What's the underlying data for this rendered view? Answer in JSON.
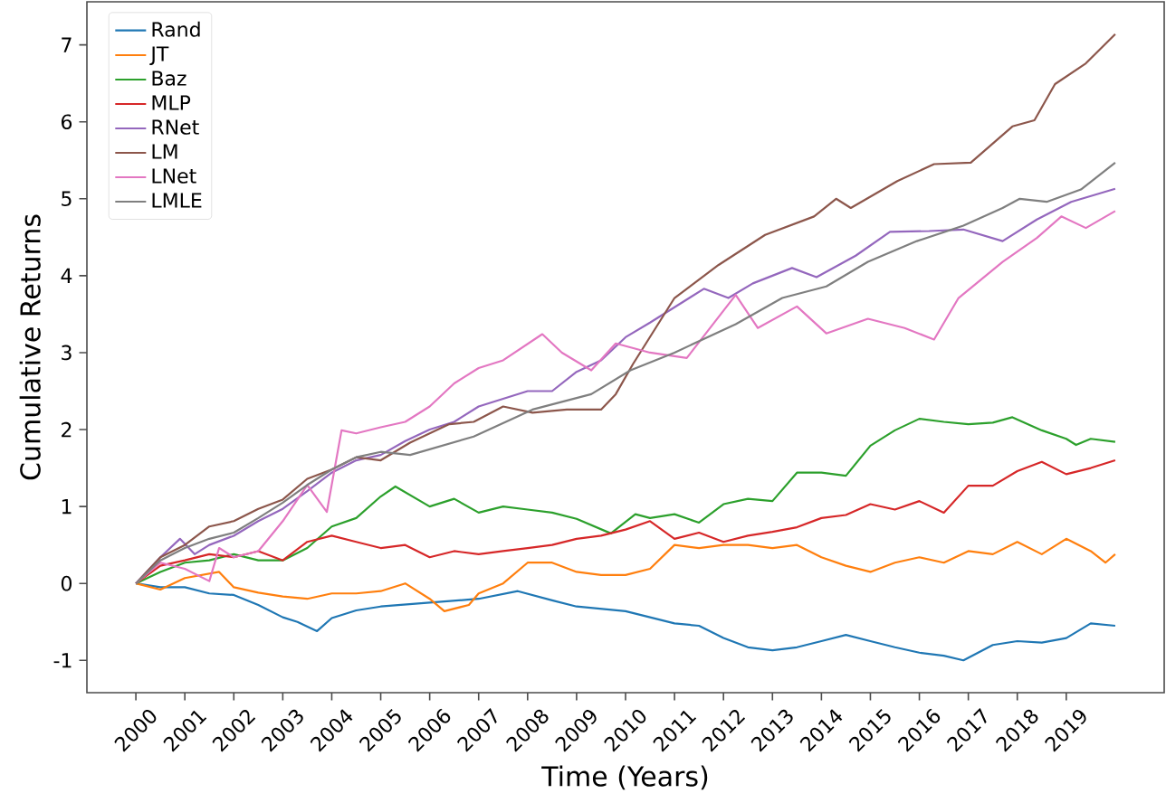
{
  "chart_data": {
    "type": "line",
    "xlabel": "Time (Years)",
    "ylabel": "Cumulative Returns",
    "xlim": [
      1999,
      2021
    ],
    "ylim": [
      -1.42,
      7.56
    ],
    "xticks": [
      2000,
      2001,
      2002,
      2003,
      2004,
      2005,
      2006,
      2007,
      2008,
      2009,
      2010,
      2011,
      2012,
      2013,
      2014,
      2015,
      2016,
      2017,
      2018,
      2019
    ],
    "yticks": [
      -1,
      0,
      1,
      2,
      3,
      4,
      5,
      6,
      7
    ],
    "legend": "top left",
    "grid": false,
    "series": [
      {
        "name": "Rand",
        "color": "#1f77b4",
        "x": [
          2000,
          2000.5,
          2001,
          2001.5,
          2002,
          2002.5,
          2003,
          2003.3,
          2003.7,
          2004,
          2004.5,
          2005,
          2006,
          2007,
          2007.8,
          2008.5,
          2009,
          2010,
          2011,
          2011.5,
          2012,
          2012.5,
          2013,
          2013.5,
          2014,
          2014.5,
          2015,
          2015.5,
          2016,
          2016.5,
          2016.9,
          2017.5,
          2018,
          2018.5,
          2019,
          2019.5,
          2020
        ],
        "values": [
          0,
          -0.05,
          -0.05,
          -0.13,
          -0.15,
          -0.28,
          -0.44,
          -0.5,
          -0.62,
          -0.45,
          -0.35,
          -0.3,
          -0.25,
          -0.2,
          -0.1,
          -0.22,
          -0.3,
          -0.36,
          -0.52,
          -0.55,
          -0.71,
          -0.83,
          -0.87,
          -0.83,
          -0.75,
          -0.67,
          -0.75,
          -0.83,
          -0.9,
          -0.94,
          -1.0,
          -0.8,
          -0.75,
          -0.77,
          -0.71,
          -0.52,
          -0.55
        ]
      },
      {
        "name": "JT",
        "color": "#ff7f0e",
        "x": [
          2000,
          2000.5,
          2001,
          2001.7,
          2002,
          2002.5,
          2003,
          2003.5,
          2004,
          2004.5,
          2005,
          2005.5,
          2006,
          2006.3,
          2006.8,
          2007,
          2007.5,
          2008,
          2008.5,
          2009,
          2009.5,
          2010,
          2010.5,
          2011,
          2011.5,
          2012,
          2012.5,
          2013,
          2013.5,
          2014,
          2014.5,
          2015,
          2015.5,
          2016,
          2016.5,
          2017,
          2017.5,
          2018,
          2018.5,
          2019,
          2019.5,
          2019.8,
          2020
        ],
        "values": [
          0,
          -0.08,
          0.07,
          0.15,
          -0.05,
          -0.12,
          -0.17,
          -0.2,
          -0.13,
          -0.13,
          -0.1,
          0,
          -0.2,
          -0.36,
          -0.28,
          -0.13,
          0,
          0.27,
          0.27,
          0.15,
          0.11,
          0.11,
          0.19,
          0.5,
          0.46,
          0.5,
          0.5,
          0.46,
          0.5,
          0.34,
          0.23,
          0.15,
          0.27,
          0.34,
          0.27,
          0.42,
          0.38,
          0.54,
          0.38,
          0.58,
          0.42,
          0.27,
          0.38
        ]
      },
      {
        "name": "Baz",
        "color": "#2ca02c",
        "x": [
          2000,
          2000.5,
          2001,
          2001.5,
          2002,
          2002.5,
          2003,
          2003.5,
          2004,
          2004.5,
          2005,
          2005.3,
          2006,
          2006.5,
          2007,
          2007.5,
          2008,
          2008.5,
          2009,
          2009.7,
          2010.2,
          2010.5,
          2011,
          2011.5,
          2012,
          2012.5,
          2013,
          2013.5,
          2014,
          2014.5,
          2015,
          2015.5,
          2016,
          2016.5,
          2017,
          2017.5,
          2017.9,
          2018.5,
          2019,
          2019.2,
          2019.5,
          2020
        ],
        "values": [
          0,
          0.15,
          0.27,
          0.3,
          0.38,
          0.3,
          0.3,
          0.46,
          0.74,
          0.85,
          1.13,
          1.26,
          1.0,
          1.1,
          0.92,
          1.0,
          0.96,
          0.92,
          0.84,
          0.65,
          0.9,
          0.85,
          0.9,
          0.79,
          1.03,
          1.1,
          1.07,
          1.44,
          1.44,
          1.4,
          1.79,
          1.99,
          2.14,
          2.1,
          2.07,
          2.09,
          2.16,
          1.99,
          1.88,
          1.8,
          1.88,
          1.84
        ]
      },
      {
        "name": "MLP",
        "color": "#d62728",
        "x": [
          2000,
          2000.5,
          2001,
          2001.5,
          2002,
          2002.5,
          2003,
          2003.5,
          2004,
          2004.5,
          2005,
          2005.5,
          2006,
          2006.5,
          2007,
          2007.5,
          2008,
          2008.5,
          2009,
          2009.5,
          2010,
          2010.5,
          2011,
          2011.5,
          2012,
          2012.5,
          2013,
          2013.5,
          2014,
          2014.5,
          2015,
          2015.5,
          2016,
          2016.5,
          2017,
          2017.5,
          2018,
          2018.5,
          2019,
          2019.5,
          2020
        ],
        "values": [
          0,
          0.23,
          0.3,
          0.38,
          0.34,
          0.42,
          0.3,
          0.54,
          0.62,
          0.54,
          0.46,
          0.5,
          0.34,
          0.42,
          0.38,
          0.42,
          0.46,
          0.5,
          0.58,
          0.62,
          0.7,
          0.81,
          0.58,
          0.66,
          0.54,
          0.62,
          0.67,
          0.73,
          0.85,
          0.89,
          1.03,
          0.96,
          1.07,
          0.92,
          1.27,
          1.27,
          1.46,
          1.58,
          1.42,
          1.5,
          1.6
        ]
      },
      {
        "name": "RNet",
        "color": "#9467bd",
        "x": [
          2000,
          2000.5,
          2000.9,
          2001.2,
          2001.5,
          2002,
          2002.5,
          2003,
          2003.5,
          2004,
          2004.5,
          2005,
          2005.5,
          2006,
          2006.5,
          2007,
          2008,
          2008.5,
          2009,
          2009.5,
          2010,
          2010.5,
          2011.6,
          2012.1,
          2012.6,
          2013.4,
          2013.9,
          2014.7,
          2015.4,
          2016.2,
          2016.9,
          2017.7,
          2018.4,
          2019.1,
          2020
        ],
        "values": [
          0,
          0.34,
          0.58,
          0.38,
          0.5,
          0.62,
          0.81,
          0.97,
          1.2,
          1.44,
          1.6,
          1.67,
          1.85,
          2.0,
          2.1,
          2.3,
          2.5,
          2.5,
          2.75,
          2.9,
          3.2,
          3.39,
          3.83,
          3.71,
          3.9,
          4.1,
          3.98,
          4.26,
          4.57,
          4.58,
          4.6,
          4.45,
          4.73,
          4.96,
          5.13
        ]
      },
      {
        "name": "LM",
        "color": "#8c564b",
        "x": [
          2000,
          2000.5,
          2001,
          2001.5,
          2002,
          2002.5,
          2003,
          2003.5,
          2004,
          2004.5,
          2005,
          2005.6,
          2006.4,
          2006.9,
          2007.5,
          2008.1,
          2008.8,
          2009.5,
          2009.8,
          2010.15,
          2011,
          2011.9,
          2012.85,
          2013.85,
          2014.3,
          2014.6,
          2015.55,
          2016.3,
          2017.05,
          2017.9,
          2018.35,
          2018.77,
          2019.4,
          2020
        ],
        "values": [
          0,
          0.34,
          0.5,
          0.74,
          0.81,
          0.97,
          1.09,
          1.36,
          1.48,
          1.64,
          1.6,
          1.83,
          2.07,
          2.1,
          2.3,
          2.22,
          2.26,
          2.26,
          2.46,
          2.85,
          3.71,
          4.14,
          4.53,
          4.77,
          5.0,
          4.88,
          5.23,
          5.45,
          5.47,
          5.94,
          6.02,
          6.49,
          6.76,
          7.14
        ]
      },
      {
        "name": "LNet",
        "color": "#e377c2",
        "x": [
          2000,
          2000.5,
          2001,
          2001.5,
          2001.7,
          2002,
          2002.5,
          2003,
          2003.5,
          2003.9,
          2004.2,
          2004.5,
          2005,
          2005.5,
          2006,
          2006.5,
          2007,
          2007.5,
          2008.3,
          2008.7,
          2009.3,
          2009.8,
          2010.5,
          2011.25,
          2012.25,
          2012.7,
          2013.5,
          2014.1,
          2014.95,
          2015.7,
          2016.3,
          2016.8,
          2017.7,
          2018.4,
          2018.9,
          2019.4,
          2020
        ],
        "values": [
          0,
          0.27,
          0.19,
          0.03,
          0.46,
          0.34,
          0.42,
          0.81,
          1.28,
          0.93,
          1.99,
          1.95,
          2.03,
          2.1,
          2.3,
          2.6,
          2.8,
          2.9,
          3.24,
          3.0,
          2.77,
          3.12,
          3.0,
          2.93,
          3.75,
          3.32,
          3.6,
          3.25,
          3.44,
          3.32,
          3.17,
          3.71,
          4.18,
          4.49,
          4.77,
          4.62,
          4.84
        ]
      },
      {
        "name": "LMLE",
        "color": "#7f7f7f",
        "x": [
          2000,
          2000.5,
          2001,
          2001.5,
          2002,
          2002.5,
          2003,
          2003.5,
          2004,
          2004.5,
          2005,
          2005.6,
          2006.9,
          2008.1,
          2009.3,
          2010.1,
          2011,
          2012.25,
          2013.2,
          2014.1,
          2014.95,
          2015.95,
          2016.9,
          2017.7,
          2018.05,
          2018.6,
          2019.3,
          2020
        ],
        "values": [
          0,
          0.3,
          0.46,
          0.58,
          0.66,
          0.85,
          1.05,
          1.28,
          1.48,
          1.64,
          1.71,
          1.67,
          1.91,
          2.26,
          2.46,
          2.77,
          3.0,
          3.37,
          3.71,
          3.86,
          4.18,
          4.45,
          4.65,
          4.88,
          5.0,
          4.96,
          5.12,
          5.47
        ]
      }
    ]
  }
}
